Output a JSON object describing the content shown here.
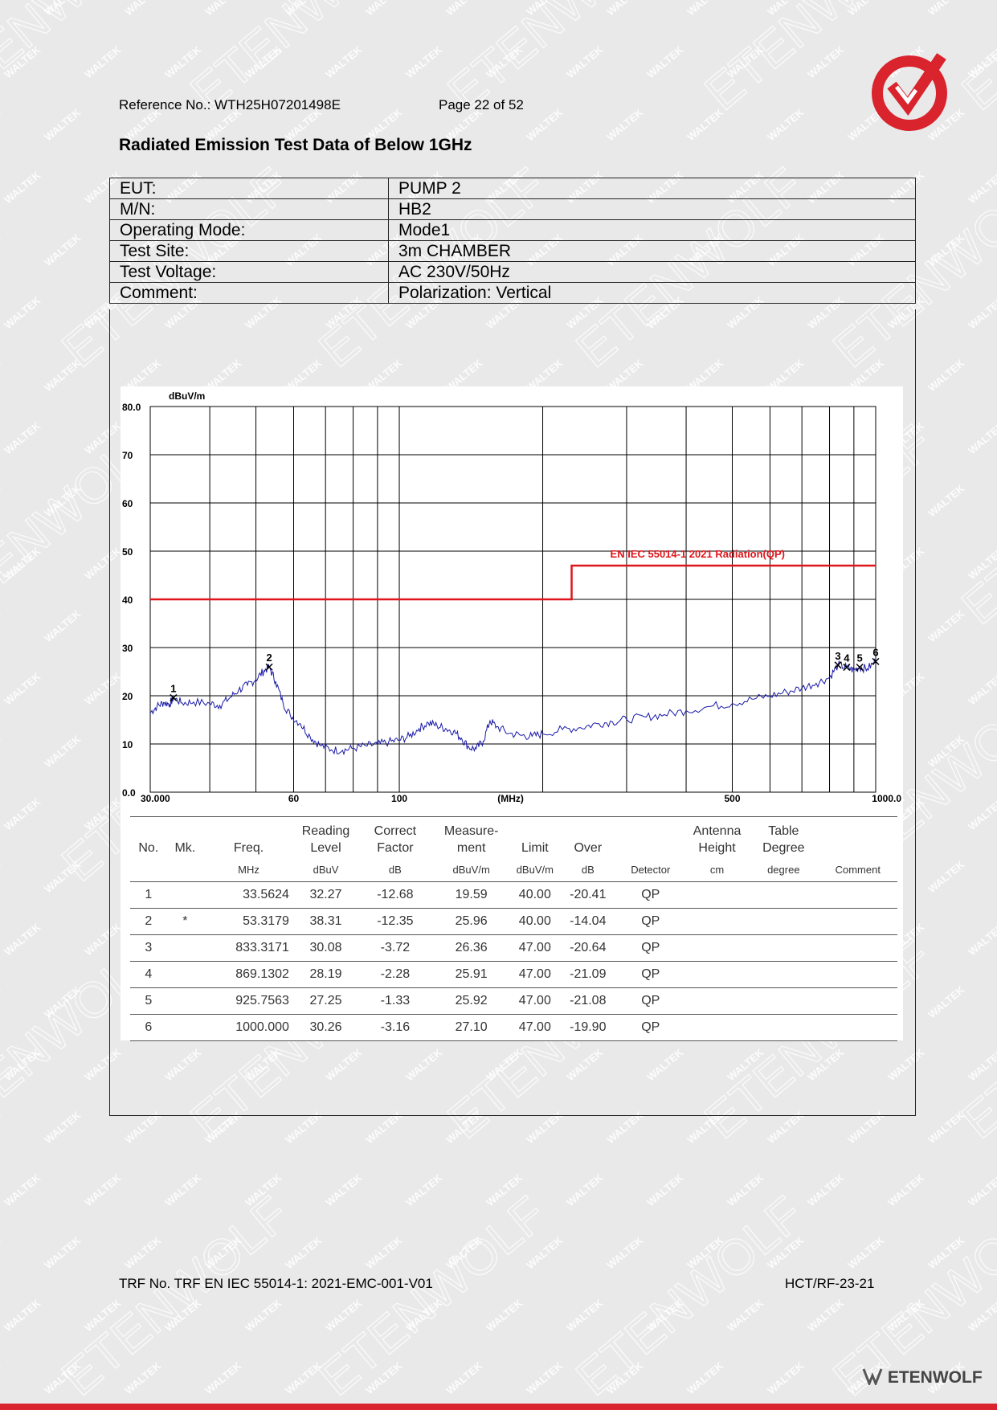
{
  "header": {
    "reference": "Reference No.: WTH25H07201498E",
    "page": "Page 22 of 52"
  },
  "title": "Radiated Emission Test Data of Below 1GHz",
  "watermark": [
    "WALTEK",
    "ETENWOLF"
  ],
  "info": [
    {
      "label": "EUT:",
      "value": "PUMP 2"
    },
    {
      "label": "M/N:",
      "value": "HB2"
    },
    {
      "label": "Operating Mode:",
      "value": "Mode1"
    },
    {
      "label": "Test Site:",
      "value": "3m CHAMBER"
    },
    {
      "label": "Test Voltage:",
      "value": "AC 230V/50Hz"
    },
    {
      "label": "Comment:",
      "value": "Polarization: Vertical"
    }
  ],
  "chart_data": {
    "type": "line",
    "ylabel": "dBuV/m",
    "xlabel": "(MHz)",
    "x_scale": "log",
    "xlim": [
      30,
      1000
    ],
    "ylim": [
      0,
      80
    ],
    "grid": true,
    "y_ticks": [
      "80.0",
      "70",
      "60",
      "50",
      "40",
      "30",
      "20",
      "10",
      "0.0"
    ],
    "x_ticks": [
      {
        "v": 30,
        "label": "30.000"
      },
      {
        "v": 60,
        "label": "60"
      },
      {
        "v": 100,
        "label": "100"
      },
      {
        "v": 500,
        "label": "500"
      },
      {
        "v": 1000,
        "label": "1000.0"
      }
    ],
    "limit": {
      "name": "EN IEC 55014-1 2021 Radiation(QP)",
      "segments": [
        {
          "x": [
            30,
            230
          ],
          "y": 40
        },
        {
          "x": [
            230,
            1000
          ],
          "y": 47
        }
      ],
      "color": "#e0151b"
    },
    "trace": {
      "color": "#1a1aa8",
      "points": [
        [
          30,
          16.5
        ],
        [
          31,
          17.8
        ],
        [
          32,
          18.6
        ],
        [
          33,
          18.3
        ],
        [
          33.56,
          19.59
        ],
        [
          35,
          18.5
        ],
        [
          37,
          18.7
        ],
        [
          40,
          18.4
        ],
        [
          42,
          18.0
        ],
        [
          44,
          19.5
        ],
        [
          46,
          21.2
        ],
        [
          48,
          22.2
        ],
        [
          50,
          23.4
        ],
        [
          52,
          25.2
        ],
        [
          53.32,
          25.96
        ],
        [
          55,
          23.0
        ],
        [
          57,
          18.5
        ],
        [
          59,
          16.0
        ],
        [
          62,
          14.2
        ],
        [
          65,
          11.5
        ],
        [
          68,
          9.8
        ],
        [
          72,
          8.8
        ],
        [
          76,
          8.7
        ],
        [
          80,
          9.1
        ],
        [
          85,
          9.6
        ],
        [
          90,
          9.9
        ],
        [
          95,
          10.4
        ],
        [
          100,
          10.8
        ],
        [
          105,
          11.6
        ],
        [
          110,
          13.2
        ],
        [
          115,
          14.4
        ],
        [
          120,
          13.8
        ],
        [
          125,
          13.2
        ],
        [
          130,
          12.6
        ],
        [
          135,
          11.2
        ],
        [
          140,
          9.3
        ],
        [
          145,
          9.0
        ],
        [
          150,
          10.6
        ],
        [
          155,
          14.8
        ],
        [
          160,
          13.6
        ],
        [
          170,
          12.2
        ],
        [
          180,
          11.8
        ],
        [
          190,
          11.6
        ],
        [
          200,
          12.1
        ],
        [
          220,
          13.0
        ],
        [
          240,
          13.4
        ],
        [
          260,
          14.2
        ],
        [
          280,
          14.6
        ],
        [
          300,
          15.1
        ],
        [
          330,
          15.6
        ],
        [
          360,
          16.1
        ],
        [
          400,
          16.9
        ],
        [
          450,
          17.8
        ],
        [
          500,
          18.4
        ],
        [
          550,
          19.3
        ],
        [
          600,
          20.0
        ],
        [
          650,
          20.8
        ],
        [
          700,
          21.6
        ],
        [
          750,
          22.6
        ],
        [
          800,
          23.8
        ],
        [
          833.32,
          26.36
        ],
        [
          869.13,
          25.91
        ],
        [
          900,
          25.3
        ],
        [
          925.76,
          25.92
        ],
        [
          960,
          25.6
        ],
        [
          1000,
          27.1
        ]
      ]
    },
    "markers": [
      {
        "label": "1",
        "x": 33.5624,
        "y": 19.59
      },
      {
        "label": "2",
        "x": 53.3179,
        "y": 25.96
      },
      {
        "label": "3",
        "x": 833.3171,
        "y": 26.36
      },
      {
        "label": "4",
        "x": 869.1302,
        "y": 25.91
      },
      {
        "label": "5",
        "x": 925.7563,
        "y": 25.92
      },
      {
        "label": "6",
        "x": 1000.0,
        "y": 27.1
      }
    ]
  },
  "table": {
    "head": [
      "No.",
      "Mk.",
      "Freq.",
      "Reading Level",
      "Correct Factor",
      "Measure- ment",
      "Limit",
      "Over",
      "",
      "Antenna Height",
      "Table Degree",
      ""
    ],
    "units": [
      "",
      "",
      "MHz",
      "dBuV",
      "dB",
      "dBuV/m",
      "dBuV/m",
      "dB",
      "Detector",
      "cm",
      "degree",
      "Comment"
    ],
    "rows": [
      [
        "1",
        "",
        "33.5624",
        "32.27",
        "-12.68",
        "19.59",
        "40.00",
        "-20.41",
        "QP",
        "",
        "",
        ""
      ],
      [
        "2",
        "*",
        "53.3179",
        "38.31",
        "-12.35",
        "25.96",
        "40.00",
        "-14.04",
        "QP",
        "",
        "",
        ""
      ],
      [
        "3",
        "",
        "833.3171",
        "30.08",
        "-3.72",
        "26.36",
        "47.00",
        "-20.64",
        "QP",
        "",
        "",
        ""
      ],
      [
        "4",
        "",
        "869.1302",
        "28.19",
        "-2.28",
        "25.91",
        "47.00",
        "-21.09",
        "QP",
        "",
        "",
        ""
      ],
      [
        "5",
        "",
        "925.7563",
        "27.25",
        "-1.33",
        "25.92",
        "47.00",
        "-21.08",
        "QP",
        "",
        "",
        ""
      ],
      [
        "6",
        "",
        "1000.000",
        "30.26",
        "-3.16",
        "27.10",
        "47.00",
        "-19.90",
        "QP",
        "",
        "",
        ""
      ]
    ]
  },
  "footer": {
    "trf": "TRF No. TRF EN IEC 55014-1: 2021-EMC-001-V01",
    "code": "HCT/RF-23-21"
  },
  "brand": "ETENWOLF",
  "colors": {
    "accent": "#d9232d"
  }
}
